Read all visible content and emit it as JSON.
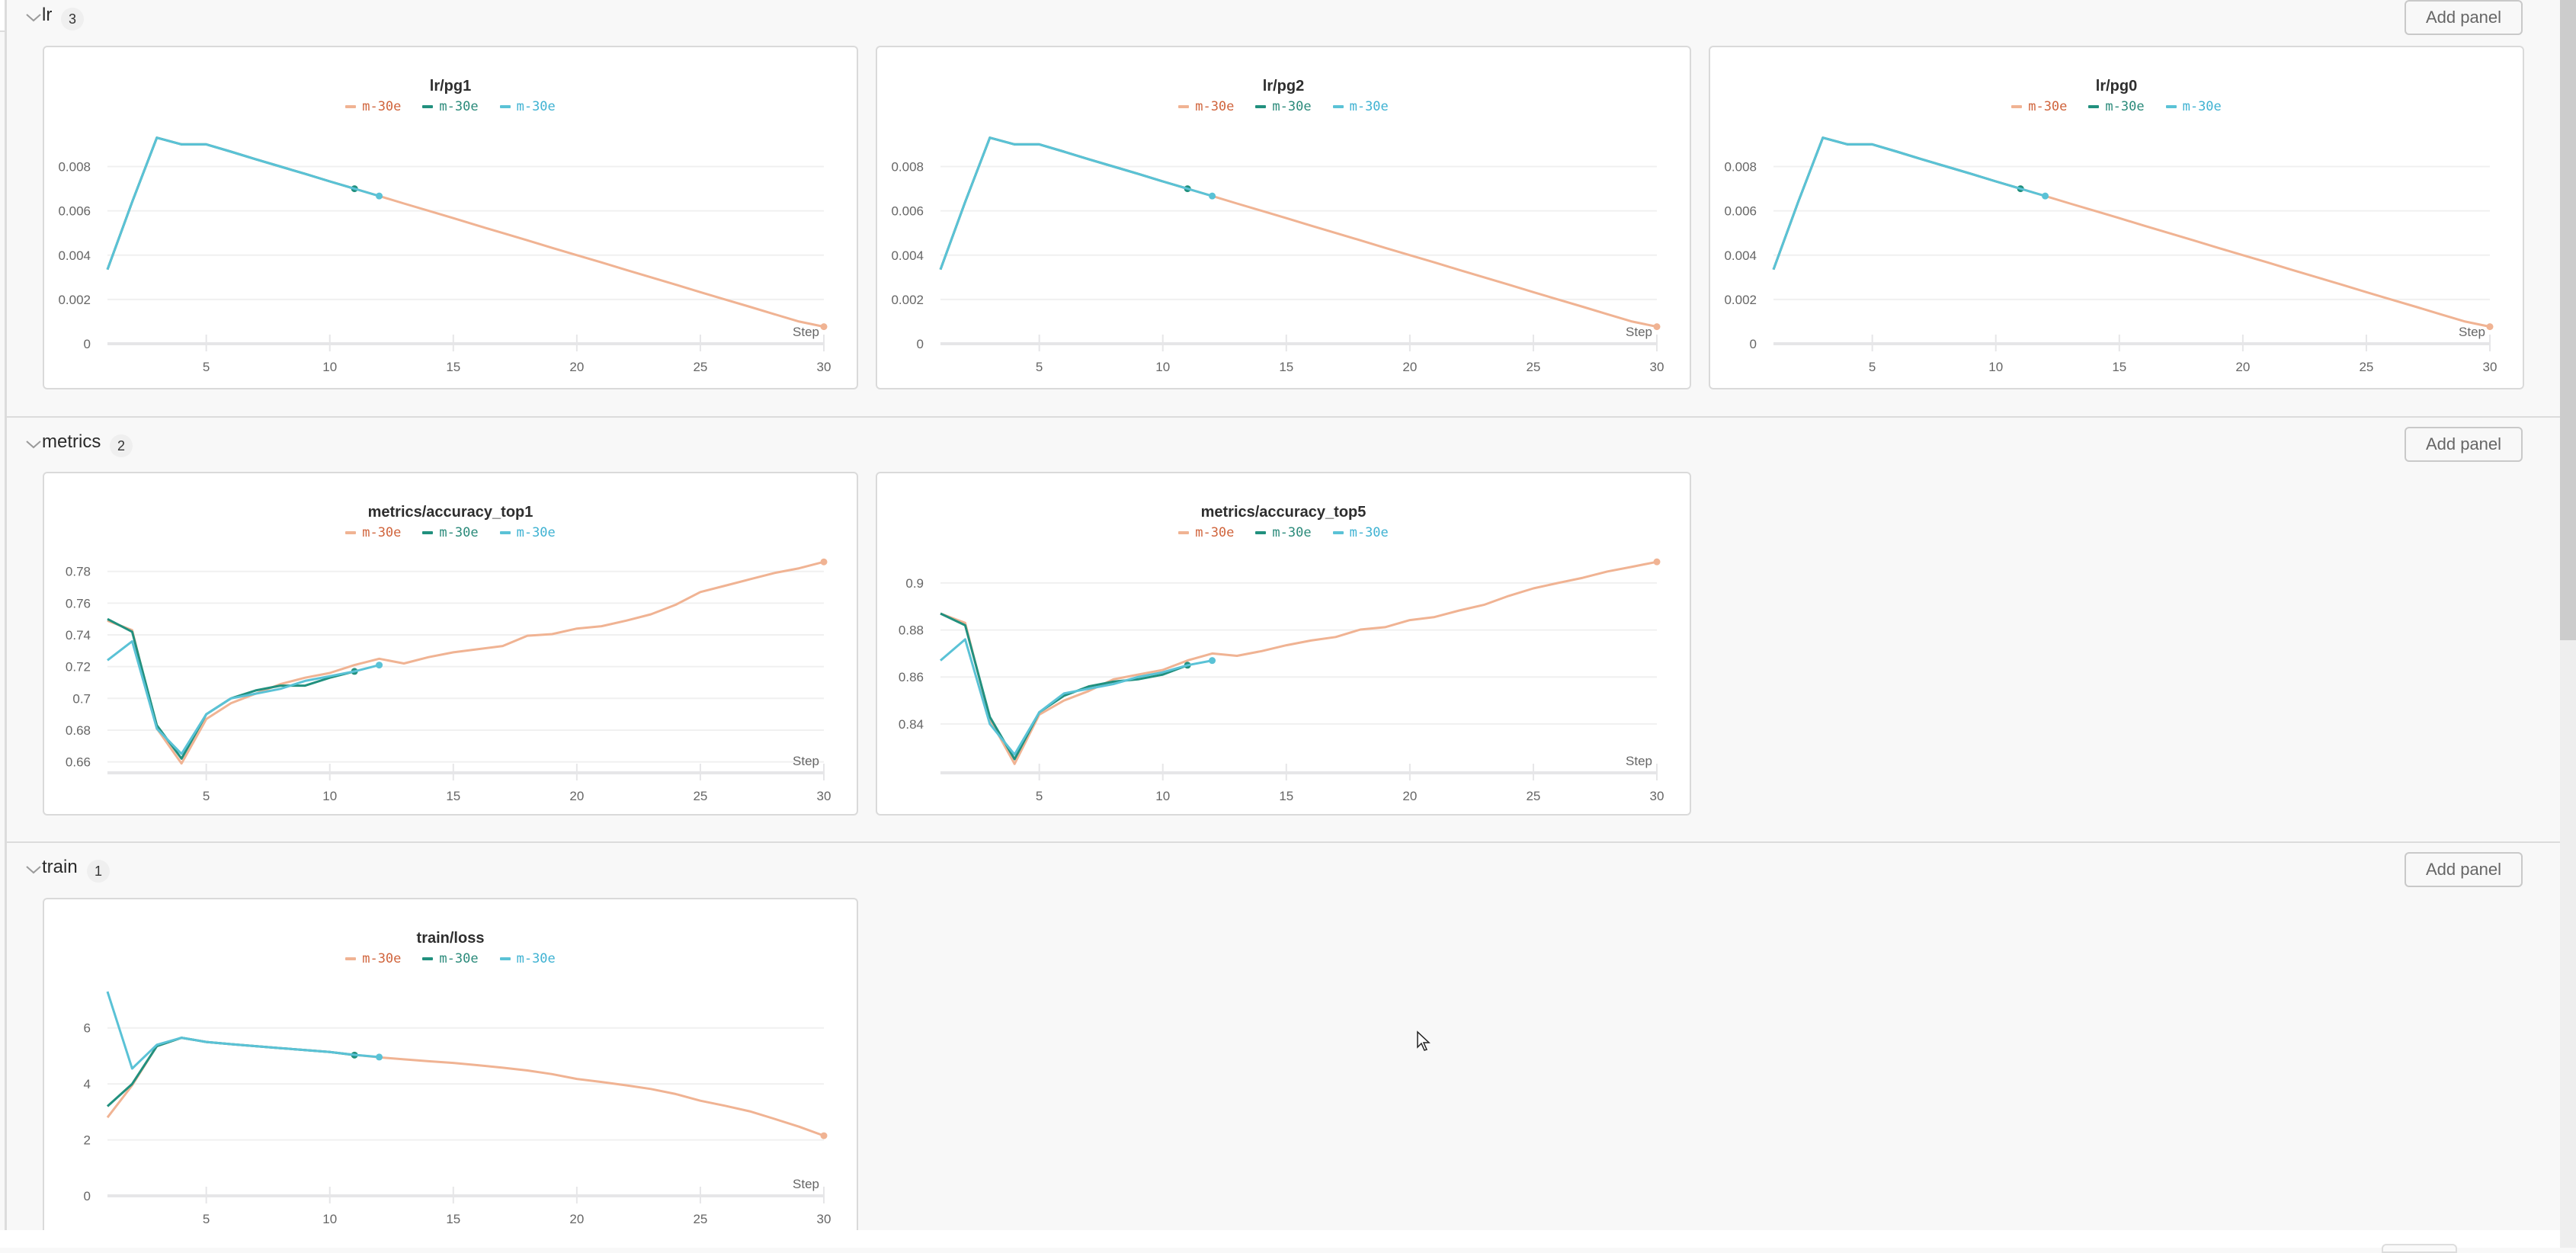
{
  "colors": {
    "run_orange_line": "#f0b393",
    "run_orange_text": "#d0643c",
    "run_teal_line": "#21907e",
    "run_teal_text": "#2a8a7a",
    "run_cyan_line": "#5ac2d6",
    "run_cyan_text": "#3fb2d2"
  },
  "legend": [
    {
      "label": "m-30e",
      "color_key": "orange"
    },
    {
      "label": "m-30e",
      "color_key": "teal"
    },
    {
      "label": "m-30e",
      "color_key": "cyan"
    }
  ],
  "sections": [
    {
      "name": "lr",
      "count": "3",
      "add_panel_label": "Add panel"
    },
    {
      "name": "metrics",
      "count": "2",
      "add_panel_label": "Add panel"
    },
    {
      "name": "train",
      "count": "1",
      "add_panel_label": "Add panel"
    }
  ],
  "x_axis_label": "Step",
  "chart_data": [
    {
      "type": "line",
      "section": "lr",
      "title": "lr/pg1",
      "xlabel": "Step",
      "ylabel": "",
      "x_ticks": [
        5,
        10,
        15,
        20,
        25,
        30
      ],
      "y_ticks": [
        0,
        0.002,
        0.004,
        0.006,
        0.008
      ],
      "y_tick_labels": [
        "0",
        "0.002",
        "0.004",
        "0.006",
        "0.008"
      ],
      "xlim": [
        1,
        30
      ],
      "ylim": [
        0,
        0.0096
      ],
      "grid": true,
      "legend_position": "top",
      "series": [
        {
          "name": "m-30e",
          "color": "orange",
          "x": [
            1,
            2,
            3,
            4,
            5,
            6,
            7,
            8,
            9,
            10,
            11,
            12,
            13,
            14,
            15,
            16,
            17,
            18,
            19,
            20,
            21,
            22,
            23,
            24,
            25,
            26,
            27,
            28,
            29,
            30
          ],
          "values": [
            0.00335,
            0.0064,
            0.0093,
            0.009,
            0.009,
            0.00867,
            0.00833,
            0.008,
            0.00767,
            0.00733,
            0.007,
            0.00667,
            0.00633,
            0.006,
            0.00567,
            0.00533,
            0.005,
            0.00467,
            0.00433,
            0.004,
            0.00367,
            0.00333,
            0.003,
            0.00267,
            0.00233,
            0.002,
            0.00167,
            0.00133,
            0.001,
            0.00077
          ]
        },
        {
          "name": "m-30e",
          "color": "teal",
          "x": [
            1,
            2,
            3,
            4,
            5,
            6,
            7,
            8,
            9,
            10,
            11
          ],
          "values": [
            0.00335,
            0.0064,
            0.0093,
            0.009,
            0.009,
            0.00867,
            0.00833,
            0.008,
            0.00767,
            0.00733,
            0.007
          ]
        },
        {
          "name": "m-30e",
          "color": "cyan",
          "x": [
            1,
            2,
            3,
            4,
            5,
            6,
            7,
            8,
            9,
            10,
            11,
            12
          ],
          "values": [
            0.00335,
            0.0064,
            0.0093,
            0.009,
            0.009,
            0.00867,
            0.00833,
            0.008,
            0.00767,
            0.00733,
            0.007,
            0.00667
          ]
        }
      ]
    },
    {
      "type": "line",
      "section": "lr",
      "title": "lr/pg2",
      "xlabel": "Step",
      "ylabel": "",
      "x_ticks": [
        5,
        10,
        15,
        20,
        25,
        30
      ],
      "y_ticks": [
        0,
        0.002,
        0.004,
        0.006,
        0.008
      ],
      "y_tick_labels": [
        "0",
        "0.002",
        "0.004",
        "0.006",
        "0.008"
      ],
      "xlim": [
        1,
        30
      ],
      "ylim": [
        0,
        0.0096
      ],
      "grid": true,
      "legend_position": "top",
      "series": [
        {
          "name": "m-30e",
          "color": "orange",
          "x": [
            1,
            2,
            3,
            4,
            5,
            6,
            7,
            8,
            9,
            10,
            11,
            12,
            13,
            14,
            15,
            16,
            17,
            18,
            19,
            20,
            21,
            22,
            23,
            24,
            25,
            26,
            27,
            28,
            29,
            30
          ],
          "values": [
            0.00335,
            0.0064,
            0.0093,
            0.009,
            0.009,
            0.00867,
            0.00833,
            0.008,
            0.00767,
            0.00733,
            0.007,
            0.00667,
            0.00633,
            0.006,
            0.00567,
            0.00533,
            0.005,
            0.00467,
            0.00433,
            0.004,
            0.00367,
            0.00333,
            0.003,
            0.00267,
            0.00233,
            0.002,
            0.00167,
            0.00133,
            0.001,
            0.00077
          ]
        },
        {
          "name": "m-30e",
          "color": "teal",
          "x": [
            1,
            2,
            3,
            4,
            5,
            6,
            7,
            8,
            9,
            10,
            11
          ],
          "values": [
            0.00335,
            0.0064,
            0.0093,
            0.009,
            0.009,
            0.00867,
            0.00833,
            0.008,
            0.00767,
            0.00733,
            0.007
          ]
        },
        {
          "name": "m-30e",
          "color": "cyan",
          "x": [
            1,
            2,
            3,
            4,
            5,
            6,
            7,
            8,
            9,
            10,
            11,
            12
          ],
          "values": [
            0.00335,
            0.0064,
            0.0093,
            0.009,
            0.009,
            0.00867,
            0.00833,
            0.008,
            0.00767,
            0.00733,
            0.007,
            0.00667
          ]
        }
      ]
    },
    {
      "type": "line",
      "section": "lr",
      "title": "lr/pg0",
      "xlabel": "Step",
      "ylabel": "",
      "x_ticks": [
        5,
        10,
        15,
        20,
        25,
        30
      ],
      "y_ticks": [
        0,
        0.002,
        0.004,
        0.006,
        0.008
      ],
      "y_tick_labels": [
        "0",
        "0.002",
        "0.004",
        "0.006",
        "0.008"
      ],
      "xlim": [
        1,
        30
      ],
      "ylim": [
        0,
        0.0096
      ],
      "grid": true,
      "legend_position": "top",
      "series": [
        {
          "name": "m-30e",
          "color": "orange",
          "x": [
            1,
            2,
            3,
            4,
            5,
            6,
            7,
            8,
            9,
            10,
            11,
            12,
            13,
            14,
            15,
            16,
            17,
            18,
            19,
            20,
            21,
            22,
            23,
            24,
            25,
            26,
            27,
            28,
            29,
            30
          ],
          "values": [
            0.00335,
            0.0064,
            0.0093,
            0.009,
            0.009,
            0.00867,
            0.00833,
            0.008,
            0.00767,
            0.00733,
            0.007,
            0.00667,
            0.00633,
            0.006,
            0.00567,
            0.00533,
            0.005,
            0.00467,
            0.00433,
            0.004,
            0.00367,
            0.00333,
            0.003,
            0.00267,
            0.00233,
            0.002,
            0.00167,
            0.00133,
            0.001,
            0.00077
          ]
        },
        {
          "name": "m-30e",
          "color": "teal",
          "x": [
            1,
            2,
            3,
            4,
            5,
            6,
            7,
            8,
            9,
            10,
            11
          ],
          "values": [
            0.00335,
            0.0064,
            0.0093,
            0.009,
            0.009,
            0.00867,
            0.00833,
            0.008,
            0.00767,
            0.00733,
            0.007
          ]
        },
        {
          "name": "m-30e",
          "color": "cyan",
          "x": [
            1,
            2,
            3,
            4,
            5,
            6,
            7,
            8,
            9,
            10,
            11,
            12
          ],
          "values": [
            0.00335,
            0.0064,
            0.0093,
            0.009,
            0.009,
            0.00867,
            0.00833,
            0.008,
            0.00767,
            0.00733,
            0.007,
            0.00667
          ]
        }
      ]
    },
    {
      "type": "line",
      "section": "metrics",
      "title": "metrics/accuracy_top1",
      "xlabel": "Step",
      "ylabel": "",
      "x_ticks": [
        5,
        10,
        15,
        20,
        25,
        30
      ],
      "y_ticks": [
        0.66,
        0.68,
        0.7,
        0.72,
        0.74,
        0.76,
        0.78
      ],
      "y_tick_labels": [
        "0.66",
        "0.68",
        "0.7",
        "0.72",
        "0.74",
        "0.76",
        "0.78"
      ],
      "xlim": [
        1,
        30
      ],
      "ylim": [
        0.655,
        0.789
      ],
      "grid": true,
      "legend_position": "top",
      "series": [
        {
          "name": "m-30e",
          "color": "orange",
          "x": [
            1,
            2,
            3,
            4,
            5,
            6,
            7,
            8,
            9,
            10,
            11,
            12,
            13,
            14,
            15,
            16,
            17,
            18,
            19,
            20,
            21,
            22,
            23,
            24,
            25,
            26,
            27,
            28,
            29,
            30
          ],
          "values": [
            0.749,
            0.743,
            0.681,
            0.659,
            0.687,
            0.697,
            0.703,
            0.709,
            0.713,
            0.716,
            0.721,
            0.725,
            0.722,
            0.726,
            0.729,
            0.731,
            0.733,
            0.7395,
            0.7405,
            0.744,
            0.7455,
            0.749,
            0.753,
            0.759,
            0.767,
            0.771,
            0.775,
            0.779,
            0.782,
            0.786
          ]
        },
        {
          "name": "m-30e",
          "color": "teal",
          "x": [
            1,
            2,
            3,
            4,
            5,
            6,
            7,
            8,
            9,
            10,
            11
          ],
          "values": [
            0.75,
            0.742,
            0.683,
            0.662,
            0.69,
            0.7,
            0.705,
            0.708,
            0.708,
            0.713,
            0.717
          ]
        },
        {
          "name": "m-30e",
          "color": "cyan",
          "x": [
            1,
            2,
            3,
            4,
            5,
            6,
            7,
            8,
            9,
            10,
            11,
            12
          ],
          "values": [
            0.724,
            0.736,
            0.681,
            0.665,
            0.69,
            0.7,
            0.703,
            0.706,
            0.711,
            0.714,
            0.717,
            0.721
          ]
        }
      ]
    },
    {
      "type": "line",
      "section": "metrics",
      "title": "metrics/accuracy_top5",
      "xlabel": "Step",
      "ylabel": "",
      "x_ticks": [
        5,
        10,
        15,
        20,
        25,
        30
      ],
      "y_ticks": [
        0.84,
        0.86,
        0.88,
        0.9
      ],
      "y_tick_labels": [
        "0.84",
        "0.86",
        "0.88",
        "0.9"
      ],
      "xlim": [
        1,
        30
      ],
      "ylim": [
        0.8205,
        0.911
      ],
      "grid": true,
      "legend_position": "top",
      "series": [
        {
          "name": "m-30e",
          "color": "orange",
          "x": [
            1,
            2,
            3,
            4,
            5,
            6,
            7,
            8,
            9,
            10,
            11,
            12,
            13,
            14,
            15,
            16,
            17,
            18,
            19,
            20,
            21,
            22,
            23,
            24,
            25,
            26,
            27,
            28,
            29,
            30
          ],
          "values": [
            0.887,
            0.883,
            0.842,
            0.823,
            0.844,
            0.85,
            0.854,
            0.859,
            0.861,
            0.863,
            0.867,
            0.87,
            0.869,
            0.871,
            0.8735,
            0.8755,
            0.877,
            0.8802,
            0.8812,
            0.8842,
            0.8855,
            0.8883,
            0.8907,
            0.8945,
            0.8977,
            0.9,
            0.9022,
            0.9049,
            0.9069,
            0.909
          ]
        },
        {
          "name": "m-30e",
          "color": "teal",
          "x": [
            1,
            2,
            3,
            4,
            5,
            6,
            7,
            8,
            9,
            10,
            11
          ],
          "values": [
            0.887,
            0.882,
            0.843,
            0.825,
            0.845,
            0.852,
            0.856,
            0.858,
            0.859,
            0.861,
            0.865
          ]
        },
        {
          "name": "m-30e",
          "color": "cyan",
          "x": [
            1,
            2,
            3,
            4,
            5,
            6,
            7,
            8,
            9,
            10,
            11,
            12
          ],
          "values": [
            0.867,
            0.876,
            0.84,
            0.827,
            0.845,
            0.853,
            0.855,
            0.857,
            0.86,
            0.862,
            0.865,
            0.867
          ]
        }
      ]
    },
    {
      "type": "line",
      "section": "train",
      "title": "train/loss",
      "xlabel": "Step",
      "ylabel": "",
      "x_ticks": [
        5,
        10,
        15,
        20,
        25,
        30
      ],
      "y_ticks": [
        0,
        2,
        4,
        6
      ],
      "y_tick_labels": [
        "0",
        "2",
        "4",
        "6"
      ],
      "xlim": [
        1,
        30
      ],
      "ylim": [
        0,
        7.6
      ],
      "grid": true,
      "legend_position": "top",
      "series": [
        {
          "name": "m-30e",
          "color": "orange",
          "x": [
            1,
            2,
            3,
            4,
            5,
            6,
            7,
            8,
            9,
            10,
            11,
            12,
            13,
            14,
            15,
            16,
            17,
            18,
            19,
            20,
            21,
            22,
            23,
            24,
            25,
            26,
            27,
            28,
            29,
            30
          ],
          "values": [
            2.8,
            3.95,
            5.35,
            5.65,
            5.5,
            5.42,
            5.35,
            5.28,
            5.21,
            5.14,
            5.04,
            4.95,
            4.88,
            4.81,
            4.75,
            4.67,
            4.58,
            4.48,
            4.35,
            4.18,
            4.07,
            3.95,
            3.82,
            3.64,
            3.4,
            3.22,
            3.02,
            2.75,
            2.47,
            2.15
          ]
        },
        {
          "name": "m-30e",
          "color": "teal",
          "x": [
            1,
            2,
            3,
            4,
            5,
            6,
            7,
            8,
            9,
            10,
            11
          ],
          "values": [
            3.2,
            4.0,
            5.35,
            5.65,
            5.5,
            5.42,
            5.35,
            5.28,
            5.21,
            5.14,
            5.03
          ]
        },
        {
          "name": "m-30e",
          "color": "cyan",
          "x": [
            1,
            2,
            3,
            4,
            5,
            6,
            7,
            8,
            9,
            10,
            11,
            12
          ],
          "values": [
            7.3,
            4.55,
            5.4,
            5.65,
            5.5,
            5.42,
            5.35,
            5.28,
            5.21,
            5.14,
            5.04,
            4.96
          ]
        }
      ]
    }
  ]
}
